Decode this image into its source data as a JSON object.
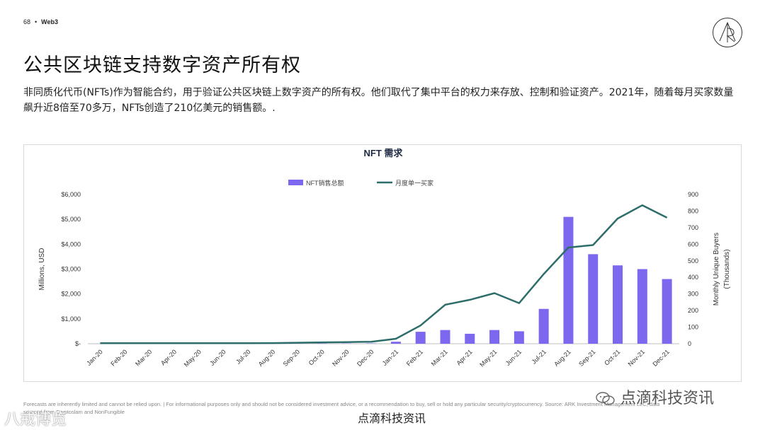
{
  "header": {
    "page_number": "68",
    "separator": "•",
    "section": "Web3"
  },
  "title": "公共区块链支持数字资产所有权",
  "description": "非同质化代币(NFTs)作为智能合约，用于验证公共区块链上数字资产的所有权。他们取代了集中平台的权力来存放、控制和验证资产。2021年，随着每月买家数量飙升近8倍至70多万，NFTs创造了210亿美元的销售额。.",
  "footnote": "Forecasts are inherently limited and cannot be relied upon. | For informational purposes only and should not be considered investment advice, or a recommendation to buy, sell or hold any particular security/cryptocurrency. Source: ARK Investment Management LLC, data sourced from Cryptoslam and NonFungible",
  "watermarks": {
    "right": "点滴科技资讯",
    "bottom": "点滴科技资讯",
    "left": "八戒博览"
  },
  "colors": {
    "bar": "#7b68ee",
    "line": "#2e6e6a",
    "grid": "#e5e5e5",
    "axis": "#bfbfbf"
  },
  "chart_data": {
    "type": "bar",
    "title": "NFT 需求",
    "legend_position": "top-center",
    "grid": false,
    "categories": [
      "Jan-20",
      "Feb-20",
      "Mar-20",
      "Apr-20",
      "May-20",
      "Jun-20",
      "Jul-20",
      "Aug-20",
      "Sep-20",
      "Oct-20",
      "Nov-20",
      "Dec-20",
      "Jan-21",
      "Feb-21",
      "Mar-21",
      "Apr-21",
      "May-21",
      "Jun-21",
      "Jul-21",
      "Aug-21",
      "Sep-21",
      "Oct-21",
      "Nov-21",
      "Dec-21"
    ],
    "series": [
      {
        "name": "NFT销售总额",
        "type": "bar",
        "axis": "left",
        "values": [
          3,
          3,
          4,
          3,
          4,
          3,
          4,
          5,
          8,
          10,
          12,
          15,
          80,
          480,
          550,
          400,
          550,
          500,
          1400,
          5100,
          3600,
          3150,
          3000,
          2600
        ]
      },
      {
        "name": "月度单一买家",
        "type": "line",
        "axis": "right",
        "values": [
          3,
          3,
          3,
          3,
          3,
          3,
          3,
          4,
          6,
          8,
          10,
          12,
          30,
          110,
          235,
          265,
          305,
          245,
          420,
          580,
          595,
          755,
          835,
          760
        ]
      }
    ],
    "y_left": {
      "label": "Millions, USD",
      "lim": [
        0,
        6000
      ],
      "ticks": [
        0,
        1000,
        2000,
        3000,
        4000,
        5000,
        6000
      ],
      "tick_labels": [
        "$-",
        "$1,000",
        "$2,000",
        "$3,000",
        "$4,000",
        "$5,000",
        "$6,000"
      ]
    },
    "y_right": {
      "label": "Monthly Unique Buyers (Thousands)",
      "lim": [
        0,
        900
      ],
      "ticks": [
        0,
        100,
        200,
        300,
        400,
        500,
        600,
        700,
        800,
        900
      ],
      "tick_labels": [
        "0",
        "100",
        "200",
        "300",
        "400",
        "500",
        "600",
        "700",
        "800",
        "900"
      ]
    }
  }
}
